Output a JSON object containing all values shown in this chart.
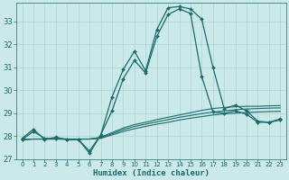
{
  "xlabel": "Humidex (Indice chaleur)",
  "xlim": [
    -0.5,
    23.5
  ],
  "ylim": [
    27,
    33.8
  ],
  "yticks": [
    27,
    28,
    29,
    30,
    31,
    32,
    33
  ],
  "xticks": [
    0,
    1,
    2,
    3,
    4,
    5,
    6,
    7,
    8,
    9,
    10,
    11,
    12,
    13,
    14,
    15,
    16,
    17,
    18,
    19,
    20,
    21,
    22,
    23
  ],
  "bg_color": "#cce9e9",
  "line_color": "#1a6b6b",
  "grid_color": "#aad4d4",
  "series": [
    {
      "y": [
        27.9,
        28.3,
        27.85,
        27.95,
        27.85,
        27.85,
        27.25,
        28.05,
        29.7,
        30.9,
        31.7,
        30.85,
        32.65,
        33.6,
        33.65,
        33.55,
        33.1,
        31.0,
        29.2,
        29.35,
        29.1,
        28.65,
        28.6,
        28.75
      ],
      "marker": true,
      "lw": 0.9
    },
    {
      "y": [
        27.85,
        28.2,
        27.9,
        27.9,
        27.85,
        27.85,
        27.35,
        28.05,
        29.1,
        30.5,
        31.3,
        30.75,
        32.35,
        33.3,
        33.55,
        33.35,
        30.6,
        29.05,
        29.0,
        29.1,
        28.95,
        28.6,
        28.6,
        28.7
      ],
      "marker": true,
      "lw": 0.9
    },
    {
      "y": [
        27.85,
        27.87,
        27.87,
        27.87,
        27.87,
        27.87,
        27.87,
        27.95,
        28.15,
        28.35,
        28.5,
        28.6,
        28.72,
        28.82,
        28.92,
        29.02,
        29.12,
        29.2,
        29.25,
        29.28,
        29.3,
        29.3,
        29.32,
        29.33
      ],
      "marker": false,
      "lw": 0.8
    },
    {
      "y": [
        27.85,
        27.87,
        27.87,
        27.87,
        27.87,
        27.87,
        27.87,
        27.92,
        28.1,
        28.28,
        28.42,
        28.52,
        28.62,
        28.72,
        28.82,
        28.9,
        28.98,
        29.05,
        29.1,
        29.15,
        29.18,
        29.2,
        29.22,
        29.23
      ],
      "marker": false,
      "lw": 0.8
    },
    {
      "y": [
        27.85,
        27.87,
        27.87,
        27.87,
        27.87,
        27.87,
        27.87,
        27.9,
        28.05,
        28.2,
        28.32,
        28.42,
        28.52,
        28.6,
        28.7,
        28.78,
        28.85,
        28.92,
        28.97,
        29.0,
        29.03,
        29.05,
        29.07,
        29.08
      ],
      "marker": false,
      "lw": 0.8
    }
  ]
}
